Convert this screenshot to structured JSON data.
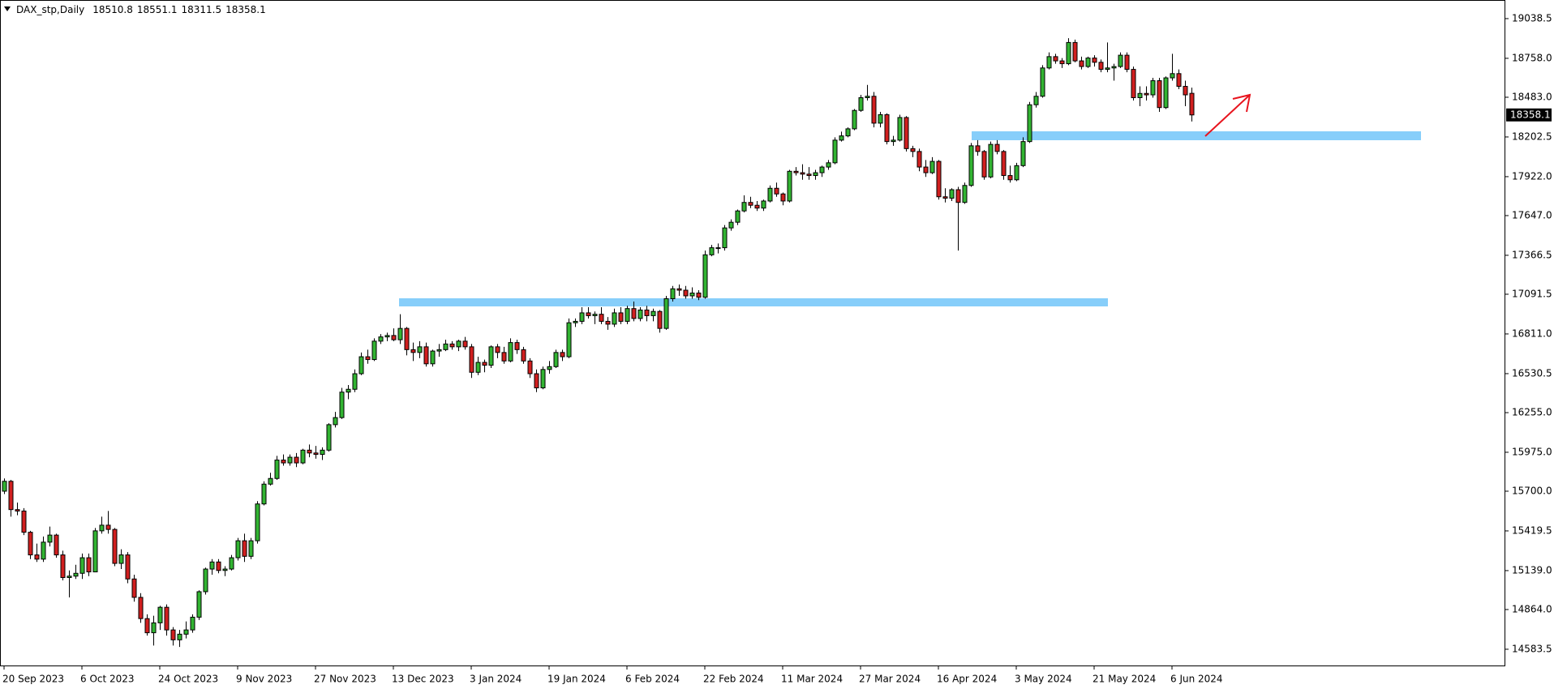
{
  "chart_data": {
    "type": "candlestick",
    "title": "DAX_stp,Daily",
    "categories": [
      "20 Sep 2023",
      null,
      null,
      null,
      null,
      null,
      null,
      null,
      null,
      null,
      null,
      null,
      "6 Oct 2023",
      null,
      null,
      null,
      null,
      null,
      null,
      null,
      null,
      null,
      null,
      null,
      "24 Oct 2023",
      null,
      null,
      null,
      null,
      null,
      null,
      null,
      null,
      null,
      null,
      null,
      "9 Nov 2023",
      null,
      null,
      null,
      null,
      null,
      null,
      null,
      null,
      null,
      null,
      null,
      "27 Nov 2023",
      null,
      null,
      null,
      null,
      null,
      null,
      null,
      null,
      null,
      null,
      null,
      "13 Dec 2023",
      null,
      null,
      null,
      null,
      null,
      null,
      null,
      null,
      null,
      null,
      null,
      "3 Jan 2024",
      null,
      null,
      null,
      null,
      null,
      null,
      null,
      null,
      null,
      null,
      null,
      "19 Jan 2024",
      null,
      null,
      null,
      null,
      null,
      null,
      null,
      null,
      null,
      null,
      null,
      "6 Feb 2024",
      null,
      null,
      null,
      null,
      null,
      null,
      null,
      null,
      null,
      null,
      null,
      "22 Feb 2024",
      null,
      null,
      null,
      null,
      null,
      null,
      null,
      null,
      null,
      null,
      null,
      "11 Mar 2024",
      null,
      null,
      null,
      null,
      null,
      null,
      null,
      null,
      null,
      null,
      null,
      "27 Mar 2024",
      null,
      null,
      null,
      null,
      null,
      null,
      null,
      null,
      null,
      null,
      null,
      "16 Apr 2024",
      null,
      null,
      null,
      null,
      null,
      null,
      null,
      null,
      null,
      null,
      null,
      "3 May 2024",
      null,
      null,
      null,
      null,
      null,
      null,
      null,
      null,
      null,
      null,
      null,
      "21 May 2024",
      null,
      null,
      null,
      null,
      null,
      null,
      null,
      null,
      null,
      null,
      null,
      "6 Jun 2024",
      null,
      null,
      null
    ],
    "open": [
      15700,
      15770,
      15570,
      15560,
      15410,
      15250,
      15220,
      15340,
      15390,
      15250,
      15090,
      15100,
      15120,
      15230,
      15130,
      15420,
      15460,
      15430,
      15190,
      15250,
      15080,
      14950,
      14800,
      14700,
      14770,
      14880,
      14720,
      14650,
      14690,
      14720,
      14810,
      14990,
      15150,
      15200,
      15140,
      15150,
      15230,
      15350,
      15240,
      15350,
      15610,
      15750,
      15790,
      15920,
      15900,
      15940,
      15900,
      15990,
      15970,
      15960,
      15990,
      16170,
      16220,
      16400,
      16420,
      16530,
      16650,
      16630,
      16760,
      16790,
      16800,
      16770,
      16850,
      16700,
      16680,
      16720,
      16600,
      16690,
      16700,
      16740,
      16720,
      16760,
      16720,
      16540,
      16610,
      16590,
      16720,
      16680,
      16620,
      16750,
      16700,
      16620,
      16530,
      16430,
      16560,
      16580,
      16680,
      16650,
      16890,
      16900,
      16960,
      16940,
      16950,
      16900,
      16880,
      16960,
      16900,
      16990,
      16920,
      16980,
      16940,
      16970,
      16850,
      17060,
      17130,
      17120,
      17080,
      17100,
      17070,
      17370,
      17420,
      17420,
      17560,
      17600,
      17680,
      17740,
      17720,
      17700,
      17750,
      17840,
      17800,
      17750,
      17960,
      17950,
      17940,
      17930,
      17950,
      17990,
      18020,
      18180,
      18210,
      18260,
      18390,
      18480,
      18490,
      18300,
      18360,
      18170,
      18180,
      18340,
      18120,
      18100,
      17990,
      17950,
      18030,
      17780,
      17770,
      17830,
      17740,
      17860,
      18140,
      18100,
      17920,
      18150,
      18100,
      17930,
      17900,
      18000,
      18170,
      18430,
      18490,
      18690,
      18770,
      18740,
      18720,
      18870,
      18740,
      18700,
      18760,
      18730,
      18680,
      18690,
      18700,
      18780,
      18680,
      18480,
      18510,
      18500,
      18600,
      18410,
      18620,
      18650,
      18560,
      18510.8
    ],
    "high": [
      15790,
      15780,
      15620,
      15580,
      15420,
      15330,
      15380,
      15450,
      15400,
      15280,
      15140,
      15180,
      15260,
      15260,
      15440,
      15520,
      15560,
      15440,
      15290,
      15270,
      15110,
      14980,
      14830,
      14820,
      14890,
      14900,
      14740,
      14720,
      14780,
      14830,
      15000,
      15160,
      15220,
      15220,
      15170,
      15250,
      15370,
      15400,
      15370,
      15630,
      15770,
      15830,
      15950,
      15960,
      15960,
      15970,
      16000,
      16030,
      16020,
      16010,
      16180,
      16260,
      16430,
      16450,
      16560,
      16680,
      16700,
      16780,
      16810,
      16820,
      16850,
      16950,
      16860,
      16750,
      16760,
      16750,
      16700,
      16740,
      16770,
      16760,
      16770,
      16790,
      16740,
      16650,
      16630,
      16730,
      16740,
      16720,
      16780,
      16770,
      16720,
      16640,
      16560,
      16580,
      16620,
      16700,
      16700,
      16920,
      16920,
      17000,
      17000,
      16970,
      17000,
      16930,
      16990,
      17000,
      17010,
      17040,
      17000,
      17010,
      16990,
      16980,
      17080,
      17150,
      17160,
      17150,
      17140,
      17120,
      17400,
      17440,
      17450,
      17580,
      17620,
      17690,
      17790,
      17780,
      17750,
      17760,
      17860,
      17880,
      17810,
      17970,
      17990,
      18010,
      17990,
      17970,
      18000,
      18040,
      18200,
      18240,
      18270,
      18400,
      18500,
      18570,
      18520,
      18380,
      18370,
      18210,
      18360,
      18350,
      18140,
      18120,
      18040,
      18060,
      18040,
      17840,
      17840,
      17850,
      17880,
      18160,
      18180,
      18110,
      18170,
      18180,
      18110,
      18000,
      18020,
      18200,
      18450,
      18520,
      18710,
      18800,
      18790,
      18760,
      18900,
      18890,
      18770,
      18770,
      18780,
      18750,
      18870,
      18720,
      18800,
      18800,
      18700,
      18560,
      18560,
      18620,
      18620,
      18630,
      18790,
      18680,
      18600,
      18551.1
    ],
    "low": [
      15680,
      15520,
      15530,
      15390,
      15220,
      15200,
      15200,
      15310,
      15230,
      15070,
      14950,
      15080,
      15080,
      15100,
      15130,
      15400,
      15400,
      15170,
      15150,
      15050,
      14920,
      14770,
      14680,
      14610,
      14720,
      14680,
      14610,
      14600,
      14660,
      14700,
      14790,
      14970,
      15110,
      15120,
      15100,
      15140,
      15210,
      15200,
      15220,
      15330,
      15600,
      15740,
      15780,
      15880,
      15880,
      15870,
      15890,
      15940,
      15930,
      15920,
      15980,
      16150,
      16210,
      16350,
      16400,
      16520,
      16600,
      16620,
      16740,
      16760,
      16760,
      16740,
      16660,
      16620,
      16640,
      16580,
      16580,
      16650,
      16690,
      16700,
      16690,
      16700,
      16500,
      16520,
      16540,
      16570,
      16640,
      16600,
      16610,
      16670,
      16600,
      16500,
      16400,
      16420,
      16530,
      16570,
      16620,
      16640,
      16860,
      16880,
      16920,
      16880,
      16880,
      16840,
      16860,
      16880,
      16880,
      16900,
      16900,
      16900,
      16900,
      16820,
      16840,
      17040,
      17080,
      17060,
      17060,
      17050,
      17060,
      17360,
      17380,
      17400,
      17540,
      17580,
      17670,
      17700,
      17680,
      17680,
      17740,
      17780,
      17720,
      17740,
      17930,
      17900,
      17900,
      17900,
      17920,
      17970,
      18010,
      18170,
      18200,
      18250,
      18380,
      18460,
      18270,
      18270,
      18150,
      18140,
      18170,
      18100,
      18060,
      17960,
      17920,
      17940,
      17760,
      17740,
      17750,
      17400,
      17730,
      17850,
      18070,
      17900,
      17910,
      18080,
      17900,
      17880,
      17890,
      17990,
      18160,
      18410,
      18480,
      18680,
      18720,
      18690,
      18710,
      18730,
      18680,
      18690,
      18700,
      18660,
      18660,
      18600,
      18690,
      18660,
      18460,
      18420,
      18460,
      18480,
      18380,
      18400,
      18600,
      18540,
      18420,
      18311.5
    ],
    "close": [
      15770,
      15570,
      15560,
      15410,
      15250,
      15220,
      15340,
      15390,
      15250,
      15090,
      15100,
      15120,
      15230,
      15130,
      15420,
      15460,
      15430,
      15190,
      15250,
      15080,
      14950,
      14800,
      14700,
      14770,
      14880,
      14720,
      14650,
      14690,
      14720,
      14810,
      14990,
      15150,
      15200,
      15140,
      15150,
      15230,
      15350,
      15240,
      15350,
      15610,
      15750,
      15790,
      15920,
      15900,
      15940,
      15900,
      15990,
      15970,
      15960,
      15990,
      16170,
      16220,
      16400,
      16420,
      16530,
      16650,
      16630,
      16760,
      16790,
      16800,
      16770,
      16850,
      16700,
      16680,
      16720,
      16600,
      16690,
      16700,
      16740,
      16720,
      16760,
      16720,
      16540,
      16610,
      16590,
      16720,
      16680,
      16620,
      16750,
      16700,
      16620,
      16530,
      16430,
      16560,
      16580,
      16680,
      16650,
      16890,
      16900,
      16960,
      16940,
      16950,
      16900,
      16880,
      16960,
      16900,
      16990,
      16920,
      16980,
      16940,
      16970,
      16850,
      17060,
      17130,
      17120,
      17080,
      17100,
      17070,
      17370,
      17420,
      17420,
      17560,
      17600,
      17680,
      17740,
      17720,
      17700,
      17750,
      17840,
      17800,
      17750,
      17960,
      17950,
      17940,
      17930,
      17950,
      17990,
      18020,
      18180,
      18210,
      18260,
      18390,
      18480,
      18490,
      18300,
      18360,
      18170,
      18180,
      18340,
      18120,
      18100,
      17990,
      17950,
      18030,
      17780,
      17770,
      17830,
      17740,
      17860,
      18140,
      18100,
      17920,
      18150,
      18100,
      17930,
      17900,
      18000,
      18170,
      18430,
      18490,
      18690,
      18770,
      18740,
      18720,
      18870,
      18740,
      18700,
      18760,
      18730,
      18680,
      18690,
      18700,
      18780,
      18680,
      18480,
      18510,
      18500,
      18600,
      18410,
      18620,
      18650,
      18560,
      18500,
      18358.1
    ],
    "up_color": "#32b432",
    "down_color": "#d11f1f",
    "ylim": [
      14463,
      19170
    ],
    "yticks": [
      19038.5,
      {
        "value": 18758,
        "label": "18758.0"
      },
      {
        "value": 18483,
        "label": "18483.0"
      },
      18202.5,
      {
        "value": 17922,
        "label": "17922.0"
      },
      {
        "value": 17647,
        "label": "17647.0"
      },
      17366.5,
      17091.5,
      {
        "value": 16811,
        "label": "16811.0"
      },
      16530.5,
      {
        "value": 16255,
        "label": "16255.0"
      },
      {
        "value": 15975,
        "label": "15975.0"
      },
      {
        "value": 15700,
        "label": "15700.0"
      },
      15419.5,
      {
        "value": 15139,
        "label": "15139.0"
      },
      {
        "value": 14864,
        "label": "14864.0"
      },
      14583.5
    ],
    "grid": false
  }
}
